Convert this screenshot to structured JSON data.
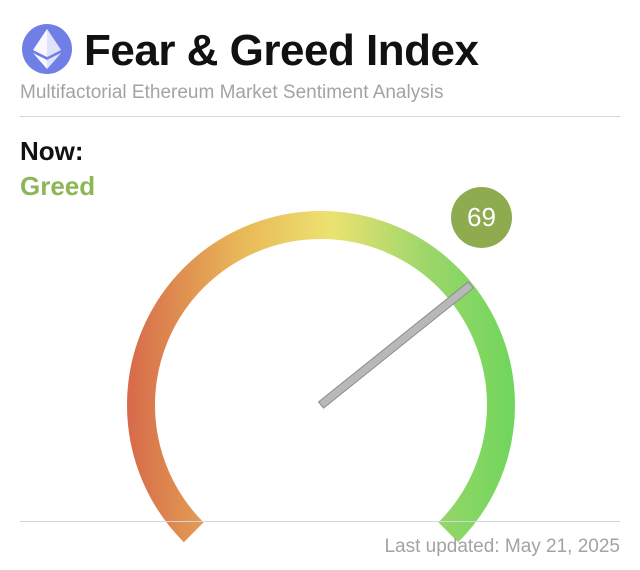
{
  "header": {
    "title": "Fear & Greed Index",
    "subtitle": "Multifactorial Ethereum Market Sentiment Analysis",
    "logo_icon": "ethereum-icon"
  },
  "status": {
    "now_label": "Now:",
    "sentiment": "Greed",
    "sentiment_color": "#8db657"
  },
  "gauge": {
    "value": 69,
    "value_label": "69",
    "min": 0,
    "max": 100,
    "badge_color": "#8fab4f",
    "gradient_colors": [
      "#d76b4b",
      "#e9b657",
      "#ece270",
      "#9ad66a",
      "#6fd65b"
    ],
    "needle_color": "#b8b8b8"
  },
  "footer": {
    "last_updated": "Last updated: May 21, 2025"
  }
}
